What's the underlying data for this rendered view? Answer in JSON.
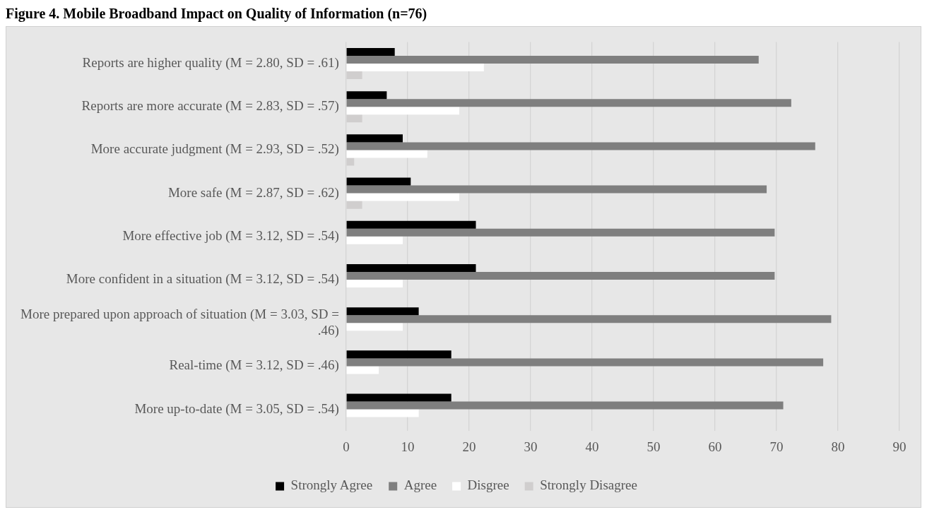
{
  "chart_data": {
    "type": "bar",
    "orientation": "horizontal",
    "title": "Figure 4. Mobile Broadband Impact on Quality of Information (n=76)",
    "categories": [
      "Reports are higher quality (M = 2.80, SD = .61)",
      "Reports are more accurate (M = 2.83, SD = .57)",
      "More accurate judgment (M = 2.93, SD = .52)",
      "More safe (M = 2.87, SD = .62)",
      "More effective job (M = 3.12, SD = .54)",
      "More confident in a situation (M = 3.12, SD = .54)",
      "More prepared upon approach of situation (M = 3.03, SD = .46)",
      "Real-time (M = 3.12, SD = .46)",
      "More up-to-date (M = 3.05, SD = .54)"
    ],
    "series": [
      {
        "name": "Strongly Agree",
        "color": "#000000",
        "values": [
          7.9,
          6.6,
          9.2,
          10.5,
          21.1,
          21.1,
          11.8,
          17.1,
          17.1
        ]
      },
      {
        "name": "Agree",
        "color": "#7f7f7f",
        "values": [
          67.1,
          72.4,
          76.3,
          68.4,
          69.7,
          69.7,
          78.9,
          77.6,
          71.1
        ]
      },
      {
        "name": "Disgree",
        "color": "#ffffff",
        "values": [
          22.4,
          18.4,
          13.2,
          18.4,
          9.2,
          9.2,
          9.2,
          5.3,
          11.8
        ]
      },
      {
        "name": "Strongly Disagree",
        "color": "#d0cece",
        "values": [
          2.6,
          2.6,
          1.3,
          2.6,
          null,
          null,
          null,
          null,
          null
        ]
      }
    ],
    "xlim": [
      0,
      90
    ],
    "xticks": [
      0,
      10,
      20,
      30,
      40,
      50,
      60,
      70,
      80,
      90
    ],
    "grid": "x",
    "legend": "bottom"
  }
}
